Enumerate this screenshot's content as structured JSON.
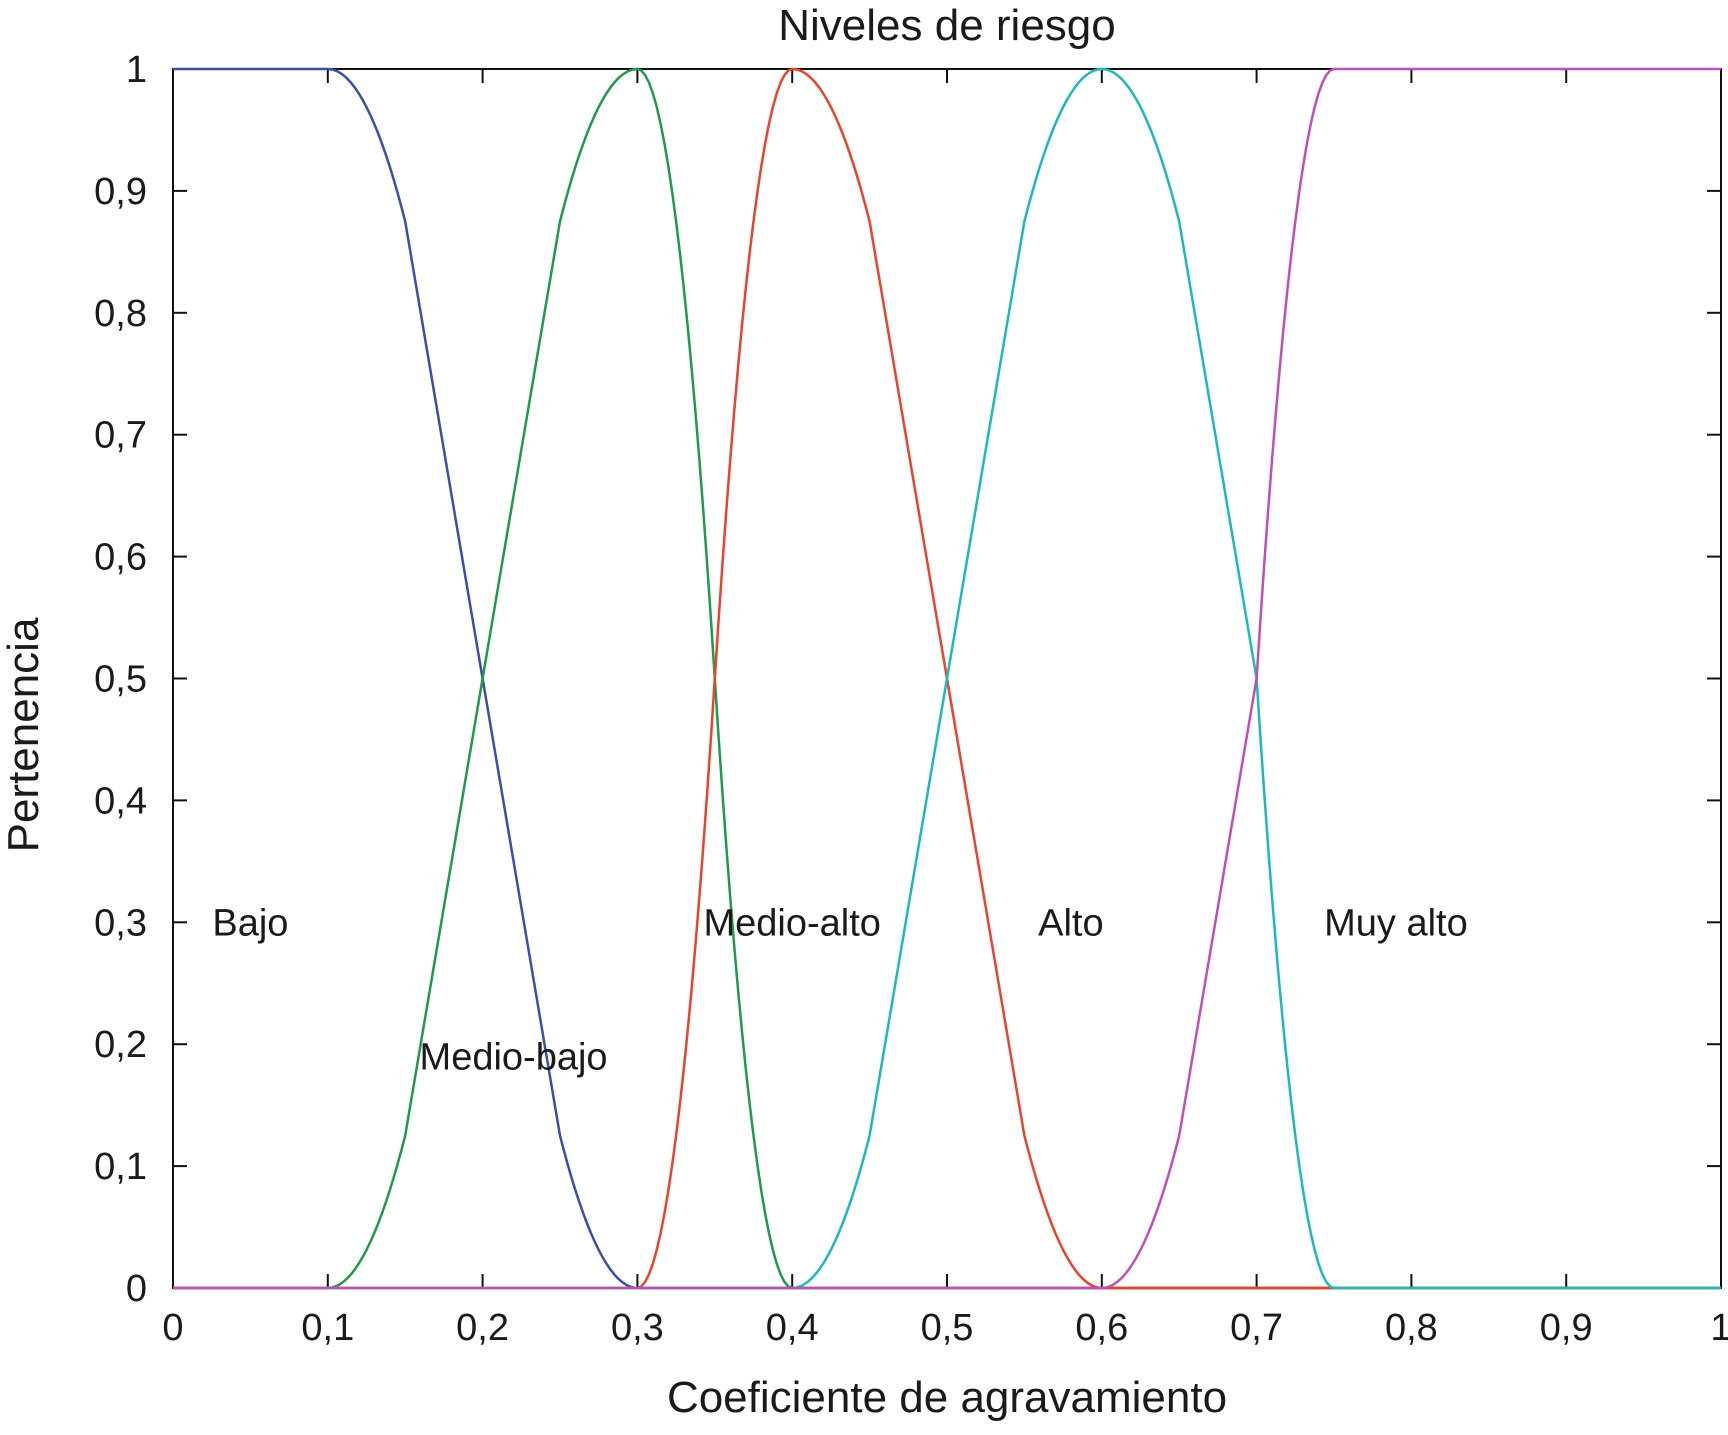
{
  "chart_data": {
    "type": "line",
    "title": "Niveles de riesgo",
    "xlabel": "Coeficiente de agravamiento",
    "ylabel": "Pertenencia",
    "xlim": [
      0,
      1
    ],
    "ylim": [
      0,
      1
    ],
    "xticks": [
      0,
      0.1,
      0.2,
      0.3,
      0.4,
      0.5,
      0.6,
      0.7,
      0.8,
      0.9,
      1
    ],
    "xtick_labels": [
      "0",
      "0,1",
      "0,2",
      "0,3",
      "0,4",
      "0,5",
      "0,6",
      "0,7",
      "0,8",
      "0,9",
      "1"
    ],
    "yticks": [
      0,
      0.1,
      0.2,
      0.3,
      0.4,
      0.5,
      0.6,
      0.7,
      0.8,
      0.9,
      1
    ],
    "ytick_labels": [
      "0",
      "0,1",
      "0,2",
      "0,3",
      "0,4",
      "0,5",
      "0,6",
      "0,7",
      "0,8",
      "0,9",
      "1"
    ],
    "grid": false,
    "series": [
      {
        "name": "Bajo",
        "color": "#3a4fa6",
        "x": [
          0,
          0.1,
          0.15,
          0.2,
          0.25,
          0.3,
          0.4,
          0.5,
          0.6,
          0.7,
          0.75,
          0.8,
          0.9,
          1
        ],
        "y": [
          1,
          1,
          0.875,
          0.5,
          0.125,
          0,
          0,
          0,
          0,
          0,
          0,
          0,
          0,
          0
        ]
      },
      {
        "name": "Medio-bajo",
        "color": "#1f9a4a",
        "x": [
          0,
          0.1,
          0.15,
          0.2,
          0.25,
          0.3,
          0.35,
          0.4,
          0.5,
          0.6,
          0.7,
          0.75,
          0.8,
          0.9,
          1
        ],
        "y": [
          0,
          0,
          0.125,
          0.5,
          0.875,
          1,
          0.5,
          0,
          0,
          0,
          0,
          0,
          0,
          0,
          0
        ]
      },
      {
        "name": "Medio-alto",
        "color": "#e8432c",
        "x": [
          0,
          0.1,
          0.2,
          0.3,
          0.35,
          0.4,
          0.45,
          0.5,
          0.55,
          0.6,
          0.7,
          0.75,
          0.8,
          0.9,
          1
        ],
        "y": [
          0,
          0,
          0,
          0,
          0.5,
          1,
          0.875,
          0.5,
          0.125,
          0,
          0,
          0,
          0,
          0,
          0
        ]
      },
      {
        "name": "Alto",
        "color": "#1fb8b8",
        "x": [
          0,
          0.1,
          0.2,
          0.3,
          0.4,
          0.45,
          0.5,
          0.55,
          0.6,
          0.65,
          0.7,
          0.75,
          0.8,
          0.9,
          1
        ],
        "y": [
          0,
          0,
          0,
          0,
          0,
          0.125,
          0.5,
          0.875,
          1,
          0.875,
          0.5,
          0,
          0,
          0,
          0
        ]
      },
      {
        "name": "Muy alto",
        "color": "#c04fb5",
        "x": [
          0,
          0.1,
          0.2,
          0.3,
          0.4,
          0.5,
          0.6,
          0.65,
          0.7,
          0.75,
          0.8,
          0.9,
          1
        ],
        "y": [
          0,
          0,
          0,
          0,
          0,
          0,
          0,
          0.125,
          0.5,
          1,
          1,
          1,
          1
        ]
      }
    ],
    "annotations": [
      {
        "text": "Bajo",
        "x": 0.05,
        "y": 0.3
      },
      {
        "text": "Medio-bajo",
        "x": 0.22,
        "y": 0.19
      },
      {
        "text": "Medio-alto",
        "x": 0.4,
        "y": 0.3
      },
      {
        "text": "Alto",
        "x": 0.58,
        "y": 0.3
      },
      {
        "text": "Muy alto",
        "x": 0.79,
        "y": 0.3
      }
    ]
  }
}
